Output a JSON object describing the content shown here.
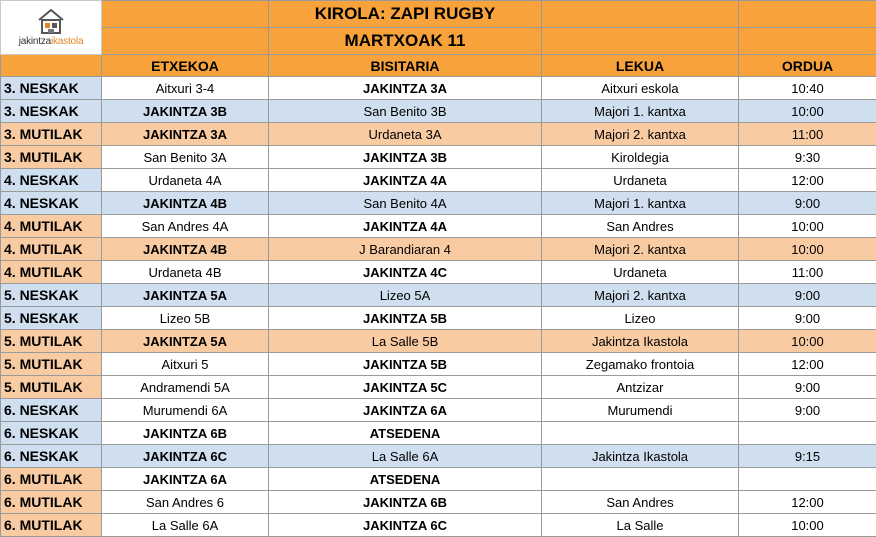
{
  "header": {
    "logo_word1": "jakintza",
    "logo_word2": "ikastola",
    "title": "KIROLA:  ZAPI RUGBY",
    "date": "MARTXOAK 11"
  },
  "columns": {
    "home": "ETXEKOA",
    "visitor": "BISITARIA",
    "place": "LEKUA",
    "time": "ORDUA"
  },
  "colors": {
    "orange": "#f7a23a",
    "light_orange": "#f9cba3",
    "light_blue": "#cfdff0",
    "white": "#ffffff"
  },
  "rows": [
    {
      "category": "3. NESKAK",
      "home": "Aitxuri 3-4",
      "visitor": "JAKINTZA 3A",
      "place": "Aitxuri eskola",
      "time": "10:40",
      "bold": "visitor",
      "tint": "white",
      "cat_tint": "blue"
    },
    {
      "category": "3. NESKAK",
      "home": "JAKINTZA 3B",
      "visitor": "San Benito 3B",
      "place": "Majori 1. kantxa",
      "time": "10:00",
      "bold": "home",
      "tint": "blue",
      "cat_tint": "blue"
    },
    {
      "category": "3. MUTILAK",
      "home": "JAKINTZA 3A",
      "visitor": "Urdaneta 3A",
      "place": "Majori 2. kantxa",
      "time": "11:00",
      "bold": "home",
      "tint": "orange",
      "cat_tint": "orange"
    },
    {
      "category": "3. MUTILAK",
      "home": "San Benito 3A",
      "visitor": "JAKINTZA 3B",
      "place": "Kiroldegia",
      "time": "9:30",
      "bold": "visitor",
      "tint": "white",
      "cat_tint": "orange"
    },
    {
      "category": "4. NESKAK",
      "home": "Urdaneta 4A",
      "visitor": "JAKINTZA 4A",
      "place": "Urdaneta",
      "time": "12:00",
      "bold": "visitor",
      "tint": "white",
      "cat_tint": "blue"
    },
    {
      "category": "4. NESKAK",
      "home": "JAKINTZA 4B",
      "visitor": "San Benito 4A",
      "place": "Majori 1. kantxa",
      "time": "9:00",
      "bold": "home",
      "tint": "blue",
      "cat_tint": "blue"
    },
    {
      "category": "4. MUTILAK",
      "home": "San Andres 4A",
      "visitor": "JAKINTZA 4A",
      "place": "San Andres",
      "time": "10:00",
      "bold": "visitor",
      "tint": "white",
      "cat_tint": "orange"
    },
    {
      "category": "4. MUTILAK",
      "home": "JAKINTZA 4B",
      "visitor": "J Barandiaran 4",
      "place": "Majori 2. kantxa",
      "time": "10:00",
      "bold": "home",
      "tint": "orange",
      "cat_tint": "orange"
    },
    {
      "category": "4. MUTILAK",
      "home": "Urdaneta 4B",
      "visitor": "JAKINTZA 4C",
      "place": "Urdaneta",
      "time": "11:00",
      "bold": "visitor",
      "tint": "white",
      "cat_tint": "orange"
    },
    {
      "category": "5. NESKAK",
      "home": "JAKINTZA 5A",
      "visitor": "Lizeo 5A",
      "place": "Majori 2. kantxa",
      "time": "9:00",
      "bold": "home",
      "tint": "blue",
      "cat_tint": "blue"
    },
    {
      "category": "5. NESKAK",
      "home": "Lizeo 5B",
      "visitor": "JAKINTZA 5B",
      "place": "Lizeo",
      "time": "9:00",
      "bold": "visitor",
      "tint": "white",
      "cat_tint": "blue"
    },
    {
      "category": "5. MUTILAK",
      "home": "JAKINTZA 5A",
      "visitor": "La Salle 5B",
      "place": "Jakintza Ikastola",
      "time": "10:00",
      "bold": "home",
      "tint": "orange",
      "cat_tint": "orange"
    },
    {
      "category": "5. MUTILAK",
      "home": "Aitxuri 5",
      "visitor": "JAKINTZA 5B",
      "place": "Zegamako frontoia",
      "time": "12:00",
      "bold": "visitor",
      "tint": "white",
      "cat_tint": "orange"
    },
    {
      "category": "5. MUTILAK",
      "home": "Andramendi 5A",
      "visitor": "JAKINTZA 5C",
      "place": "Antzizar",
      "time": "9:00",
      "bold": "visitor",
      "tint": "white",
      "cat_tint": "orange"
    },
    {
      "category": "6. NESKAK",
      "home": "Murumendi 6A",
      "visitor": "JAKINTZA 6A",
      "place": "Murumendi",
      "time": "9:00",
      "bold": "visitor",
      "tint": "white",
      "cat_tint": "blue"
    },
    {
      "category": "6. NESKAK",
      "home": "JAKINTZA 6B",
      "visitor": "ATSEDENA",
      "place": "",
      "time": "",
      "bold": "both",
      "tint": "white",
      "cat_tint": "blue"
    },
    {
      "category": "6. NESKAK",
      "home": "JAKINTZA 6C",
      "visitor": "La Salle 6A",
      "place": "Jakintza Ikastola",
      "time": "9:15",
      "bold": "home",
      "tint": "blue",
      "cat_tint": "blue"
    },
    {
      "category": "6. MUTILAK",
      "home": "JAKINTZA 6A",
      "visitor": "ATSEDENA",
      "place": "",
      "time": "",
      "bold": "both",
      "tint": "white",
      "cat_tint": "orange"
    },
    {
      "category": "6. MUTILAK",
      "home": "San Andres 6",
      "visitor": "JAKINTZA 6B",
      "place": "San Andres",
      "time": "12:00",
      "bold": "visitor",
      "tint": "white",
      "cat_tint": "orange"
    },
    {
      "category": "6. MUTILAK",
      "home": "La Salle 6A",
      "visitor": "JAKINTZA 6C",
      "place": "La Salle",
      "time": "10:00",
      "bold": "visitor",
      "tint": "white",
      "cat_tint": "orange"
    }
  ]
}
